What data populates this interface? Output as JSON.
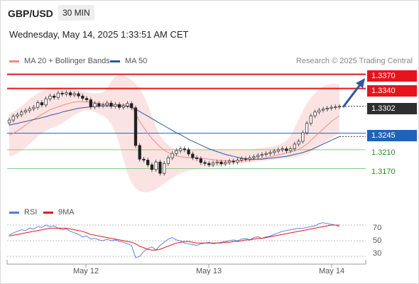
{
  "header": {
    "pair": "GBP/USD",
    "timeframe": "30 MIN",
    "datetime": "Wednesday, May 14, 2025 1:33:51 AM CET",
    "credit": "Research © 2025 Trading Central"
  },
  "legend_top": [
    {
      "name": "MA 20 + Bollinger Bands",
      "color": "#f08a8a"
    },
    {
      "name": "MA 50",
      "color": "#2a5aa0"
    }
  ],
  "legend_bottom": [
    {
      "name": "RSI",
      "color": "#5577dd"
    },
    {
      "name": "9MA",
      "color": "#e8141c"
    }
  ],
  "levels": [
    {
      "label": "1.3370",
      "value": 1.337,
      "style": "red"
    },
    {
      "label": "1.3340",
      "value": 1.334,
      "style": "red"
    },
    {
      "label": "1.3302",
      "value": 1.3302,
      "style": "dark"
    },
    {
      "label": "1.3245",
      "value": 1.3245,
      "style": "blue"
    },
    {
      "label": "1.3210",
      "value": 1.321,
      "style": "green"
    },
    {
      "label": "1.3170",
      "value": 1.317,
      "style": "green"
    }
  ],
  "rsi_ticks": [
    "70",
    "50",
    "30"
  ],
  "x_ticks": [
    "May 12",
    "May 13",
    "May 14"
  ],
  "chart_data": [
    {
      "type": "line",
      "title": "GBP/USD 30 MIN",
      "ylim": [
        1.3118,
        1.338
      ],
      "price_close": [
        1.3273,
        1.3281,
        1.3284,
        1.329,
        1.3293,
        1.3297,
        1.33,
        1.331,
        1.3305,
        1.3318,
        1.3324,
        1.3321,
        1.333,
        1.3328,
        1.3331,
        1.3326,
        1.3329,
        1.3324,
        1.3319,
        1.3316,
        1.3301,
        1.3308,
        1.3303,
        1.3305,
        1.3309,
        1.3302,
        1.3306,
        1.33,
        1.3303,
        1.3308,
        1.3299,
        1.3219,
        1.319,
        1.3188,
        1.3178,
        1.3168,
        1.3184,
        1.316,
        1.3181,
        1.3193,
        1.3202,
        1.3208,
        1.3212,
        1.321,
        1.3201,
        1.3193,
        1.3191,
        1.3183,
        1.3181,
        1.3178,
        1.3182,
        1.3184,
        1.318,
        1.3183,
        1.3186,
        1.3184,
        1.3188,
        1.3191,
        1.319,
        1.3193,
        1.3195,
        1.3198,
        1.32,
        1.3202,
        1.3204,
        1.3207,
        1.321,
        1.3212,
        1.3208,
        1.3212,
        1.3222,
        1.3228,
        1.3246,
        1.3266,
        1.3282,
        1.329,
        1.3294,
        1.3296,
        1.3298,
        1.33,
        1.3301,
        1.3302
      ],
      "series": [
        {
          "name": "MA 20 + Bollinger Bands",
          "values": [
            1.3241,
            1.3245,
            1.325,
            1.3256,
            1.3262,
            1.3268,
            1.3274,
            1.328,
            1.3285,
            1.329,
            1.3295,
            1.3298,
            1.3301,
            1.3304,
            1.3307,
            1.3309,
            1.3311,
            1.3312,
            1.3312,
            1.3311,
            1.331,
            1.331,
            1.3308,
            1.3307,
            1.3307,
            1.3306,
            1.3306,
            1.3305,
            1.3305,
            1.3305,
            1.3302,
            1.3286,
            1.327,
            1.3257,
            1.3245,
            1.3234,
            1.3225,
            1.3216,
            1.3209,
            1.3204,
            1.32,
            1.3197,
            1.3195,
            1.3194,
            1.3193,
            1.3193,
            1.3193,
            1.3192,
            1.3191,
            1.319,
            1.3189,
            1.3188,
            1.3187,
            1.3187,
            1.3186,
            1.3186,
            1.3186,
            1.3187,
            1.3187,
            1.3188,
            1.3189,
            1.319,
            1.3192,
            1.3193,
            1.3195,
            1.3197,
            1.3199,
            1.3201,
            1.3203,
            1.3205,
            1.3208,
            1.3211,
            1.3216,
            1.3222,
            1.323,
            1.3238,
            1.3246,
            1.3254,
            1.3262,
            1.327,
            1.3276,
            1.3282
          ]
        },
        {
          "name": "MA 50",
          "values": [
            1.3262,
            1.3264,
            1.3266,
            1.3268,
            1.327,
            1.3272,
            1.3274,
            1.3276,
            1.3278,
            1.328,
            1.3283,
            1.3285,
            1.3287,
            1.329,
            1.3292,
            1.3294,
            1.3296,
            1.3298,
            1.3299,
            1.33,
            1.3301,
            1.3302,
            1.3302,
            1.3303,
            1.3303,
            1.3303,
            1.3303,
            1.3303,
            1.3302,
            1.3302,
            1.33,
            1.3296,
            1.3291,
            1.3286,
            1.3281,
            1.3276,
            1.3271,
            1.3266,
            1.3261,
            1.3256,
            1.3251,
            1.3246,
            1.3242,
            1.3237,
            1.3232,
            1.3228,
            1.3224,
            1.322,
            1.3216,
            1.3212,
            1.3209,
            1.3206,
            1.3203,
            1.32,
            1.3198,
            1.3196,
            1.3194,
            1.3192,
            1.3191,
            1.319,
            1.319,
            1.319,
            1.319,
            1.3191,
            1.3192,
            1.3193,
            1.3194,
            1.3195,
            1.3196,
            1.3198,
            1.32,
            1.3202,
            1.3204,
            1.3207,
            1.321,
            1.3214,
            1.3218,
            1.3222,
            1.3226,
            1.323,
            1.3234,
            1.3238
          ]
        }
      ],
      "band_upper": [
        1.3285,
        1.329,
        1.3296,
        1.3302,
        1.331,
        1.3318,
        1.3324,
        1.333,
        1.3334,
        1.3338,
        1.334,
        1.3341,
        1.3342,
        1.3342,
        1.3341,
        1.334,
        1.3338,
        1.3336,
        1.3334,
        1.3332,
        1.333,
        1.333,
        1.333,
        1.3332,
        1.334,
        1.3355,
        1.3365,
        1.3368,
        1.3368,
        1.3364,
        1.3358,
        1.335,
        1.334,
        1.3325,
        1.3305,
        1.3282,
        1.3258,
        1.324,
        1.3228,
        1.322,
        1.3214,
        1.3212,
        1.321,
        1.321,
        1.321,
        1.321,
        1.321,
        1.321,
        1.321,
        1.321,
        1.321,
        1.321,
        1.321,
        1.321,
        1.321,
        1.321,
        1.321,
        1.321,
        1.321,
        1.3211,
        1.3212,
        1.3213,
        1.3214,
        1.3215,
        1.3216,
        1.3218,
        1.322,
        1.3224,
        1.323,
        1.324,
        1.3256,
        1.3275,
        1.3292,
        1.3308,
        1.332,
        1.333,
        1.3338,
        1.3344,
        1.3348,
        1.335,
        1.335,
        1.3348
      ],
      "band_lower": [
        1.3195,
        1.3198,
        1.3202,
        1.3208,
        1.3214,
        1.3222,
        1.323,
        1.3238,
        1.3244,
        1.325,
        1.3255,
        1.3258,
        1.3262,
        1.3266,
        1.3272,
        1.3278,
        1.3284,
        1.3288,
        1.3292,
        1.3294,
        1.3292,
        1.329,
        1.3286,
        1.3282,
        1.3276,
        1.3264,
        1.3246,
        1.3222,
        1.319,
        1.316,
        1.314,
        1.3128,
        1.3122,
        1.312,
        1.312,
        1.3122,
        1.3126,
        1.3132,
        1.3138,
        1.3144,
        1.315,
        1.3155,
        1.316,
        1.3163,
        1.3166,
        1.3168,
        1.317,
        1.3171,
        1.3172,
        1.3173,
        1.3174,
        1.3175,
        1.3176,
        1.3177,
        1.3178,
        1.3179,
        1.318,
        1.3181,
        1.3182,
        1.3183,
        1.3184,
        1.3185,
        1.3186,
        1.3187,
        1.3188,
        1.3189,
        1.319,
        1.3191,
        1.3192,
        1.3193,
        1.3194,
        1.3196,
        1.3198,
        1.32,
        1.3205,
        1.321,
        1.3216,
        1.3222,
        1.3228,
        1.3234,
        1.324,
        1.3246
      ]
    },
    {
      "type": "line",
      "title": "RSI",
      "ylim": [
        20,
        80
      ],
      "series": [
        {
          "name": "RSI",
          "values": [
            57,
            60,
            62,
            64,
            63,
            66,
            65,
            68,
            67,
            70,
            68,
            69,
            66,
            64,
            65,
            62,
            60,
            58,
            55,
            56,
            52,
            53,
            51,
            50,
            52,
            50,
            51,
            49,
            48,
            46,
            44,
            28,
            30,
            36,
            40,
            42,
            38,
            44,
            48,
            52,
            54,
            51,
            50,
            47,
            46,
            45,
            44,
            46,
            47,
            48,
            46,
            47,
            48,
            49,
            50,
            51,
            50,
            52,
            53,
            51,
            54,
            55,
            53,
            55,
            56,
            58,
            60,
            62,
            63,
            64,
            65,
            66,
            66,
            67,
            68,
            69,
            72,
            73,
            72,
            71,
            70,
            68
          ]
        },
        {
          "name": "9MA",
          "values": [
            56,
            57,
            58,
            59,
            60,
            61,
            62,
            63,
            64,
            65,
            66,
            66,
            66,
            66,
            66,
            65,
            64,
            63,
            62,
            60,
            58,
            57,
            56,
            55,
            54,
            53,
            52,
            51,
            50,
            49,
            48,
            46,
            43,
            41,
            39,
            38,
            38,
            39,
            41,
            43,
            45,
            47,
            48,
            49,
            49,
            48,
            47,
            47,
            47,
            47,
            47,
            47,
            47,
            48,
            48,
            49,
            49,
            50,
            51,
            51,
            52,
            53,
            53,
            54,
            55,
            56,
            57,
            58,
            59,
            60,
            61,
            62,
            63,
            64,
            65,
            66,
            67,
            68,
            69,
            70,
            70,
            70
          ]
        }
      ]
    }
  ]
}
